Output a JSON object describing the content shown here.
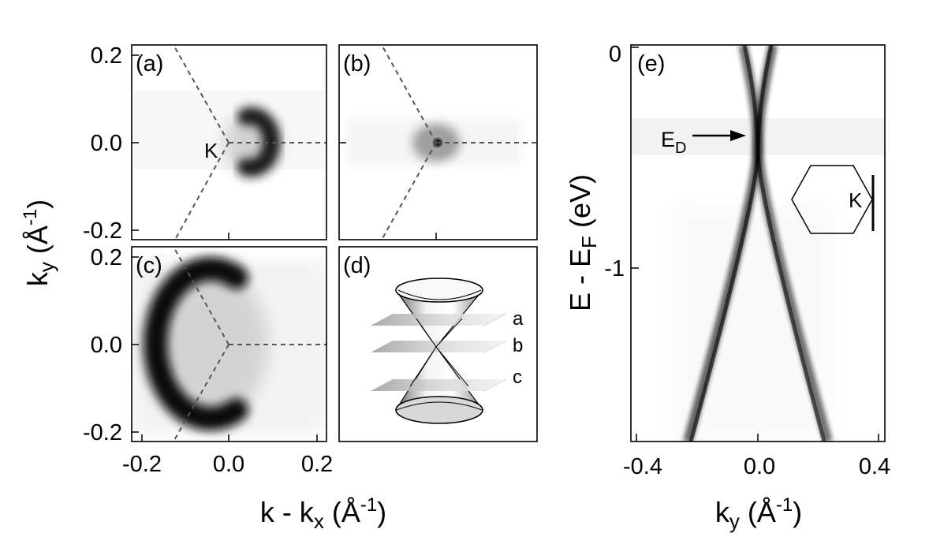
{
  "figure": {
    "panels": {
      "a": "(a)",
      "b": "(b)",
      "c": "(c)",
      "d": "(d)",
      "e": "(e)"
    },
    "left_axes": {
      "ky_ticks": [
        "0.2",
        "0.0",
        "-0.2"
      ],
      "kx_ticks": [
        "-0.2",
        "0.0",
        "0.2"
      ],
      "ylabel_main": "k",
      "ylabel_sub": "y",
      "ylabel_unit": "(Å",
      "ylabel_exp": "-1",
      "ylabel_close": ")",
      "xlabel_main": "k - k",
      "xlabel_sub": "x",
      "xlabel_unit": "(Å",
      "xlabel_exp": "-1",
      "xlabel_close": ")"
    },
    "panel_a_point": "K",
    "cone_planes": [
      "a",
      "b",
      "c"
    ],
    "right_axes": {
      "energy_ticks": [
        "0",
        "-1"
      ],
      "ky_ticks": [
        "-0.4",
        "0.0",
        "0.4"
      ],
      "ylabel_main": "E - E",
      "ylabel_sub": "F",
      "ylabel_unit": "(eV)",
      "xlabel_main": "k",
      "xlabel_sub": "y",
      "xlabel_unit": "(Å",
      "xlabel_exp": "-1",
      "xlabel_close": ")"
    },
    "dirac_label_main": "E",
    "dirac_label_sub": "D",
    "bz_point": "K"
  },
  "chart_data": {
    "type": "heatmap",
    "xlabel": "k - kx (Å-1)",
    "ylabel": "ky (Å-1)",
    "xlim": [
      -0.2,
      0.2
    ],
    "ylim": [
      -0.2,
      0.2
    ],
    "dirac_point_energy_eV": -0.45,
    "energy_range_eV": [
      -1.7,
      0
    ],
    "ky_range": [
      -0.4,
      0.4
    ]
  }
}
